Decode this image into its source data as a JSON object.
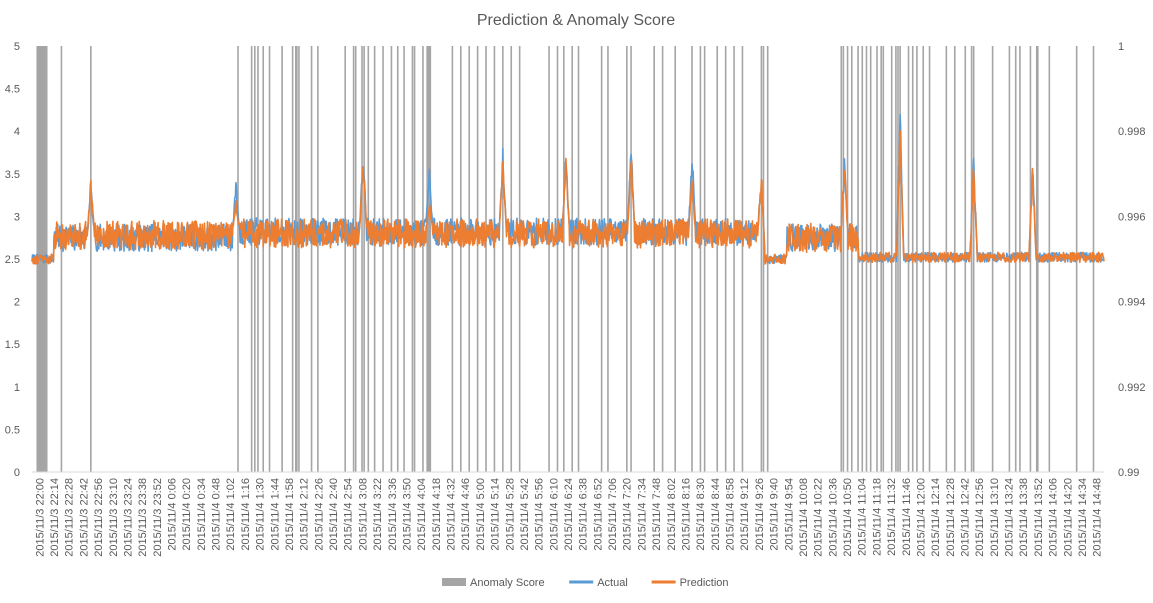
{
  "chart_data": {
    "type": "line",
    "title": "Prediction & Anomaly Score",
    "xlabel": "",
    "ylabel": "",
    "ylim": [
      0,
      5
    ],
    "y2lim": [
      0.99,
      1
    ],
    "yticks": [
      "0",
      "0.5",
      "1",
      "1.5",
      "2",
      "2.5",
      "3",
      "3.5",
      "4",
      "4.5",
      "5"
    ],
    "y2ticks": [
      "0.99",
      "0.992",
      "0.994",
      "0.996",
      "0.998",
      "1"
    ],
    "grid": false,
    "legend_position": "bottom",
    "categories": [
      "2015/11/3 22:00",
      "2015/11/3 22:14",
      "2015/11/3 22:28",
      "2015/11/3 22:42",
      "2015/11/3 22:56",
      "2015/11/3 23:10",
      "2015/11/3 23:24",
      "2015/11/3 23:38",
      "2015/11/3 23:52",
      "2015/11/4 0:06",
      "2015/11/4 0:20",
      "2015/11/4 0:34",
      "2015/11/4 0:48",
      "2015/11/4 1:02",
      "2015/11/4 1:16",
      "2015/11/4 1:30",
      "2015/11/4 1:44",
      "2015/11/4 1:58",
      "2015/11/4 2:12",
      "2015/11/4 2:26",
      "2015/11/4 2:40",
      "2015/11/4 2:54",
      "2015/11/4 3:08",
      "2015/11/4 3:22",
      "2015/11/4 3:36",
      "2015/11/4 3:50",
      "2015/11/4 4:04",
      "2015/11/4 4:18",
      "2015/11/4 4:32",
      "2015/11/4 4:46",
      "2015/11/4 5:00",
      "2015/11/4 5:14",
      "2015/11/4 5:28",
      "2015/11/4 5:42",
      "2015/11/4 5:56",
      "2015/11/4 6:10",
      "2015/11/4 6:24",
      "2015/11/4 6:38",
      "2015/11/4 6:52",
      "2015/11/4 7:06",
      "2015/11/4 7:20",
      "2015/11/4 7:34",
      "2015/11/4 7:48",
      "2015/11/4 8:02",
      "2015/11/4 8:16",
      "2015/11/4 8:30",
      "2015/11/4 8:44",
      "2015/11/4 8:58",
      "2015/11/4 9:12",
      "2015/11/4 9:26",
      "2015/11/4 9:40",
      "2015/11/4 9:54",
      "2015/11/4 10:08",
      "2015/11/4 10:22",
      "2015/11/4 10:36",
      "2015/11/4 10:50",
      "2015/11/4 11:04",
      "2015/11/4 11:18",
      "2015/11/4 11:32",
      "2015/11/4 11:46",
      "2015/11/4 12:00",
      "2015/11/4 12:14",
      "2015/11/4 12:28",
      "2015/11/4 12:42",
      "2015/11/4 12:56",
      "2015/11/4 13:10",
      "2015/11/4 13:24",
      "2015/11/4 13:38",
      "2015/11/4 13:52",
      "2015/11/4 14:06",
      "2015/11/4 14:20",
      "2015/11/4 14:34",
      "2015/11/4 14:48"
    ],
    "series": [
      {
        "name": "Anomaly Score",
        "type": "column",
        "axis": "secondary",
        "color": "#a5a5a5",
        "anomaly_times": [
          "22:05",
          "22:06",
          "22:07",
          "22:08",
          "22:09",
          "22:10",
          "22:11",
          "22:12",
          "22:13",
          "22:14",
          "22:28",
          "22:56",
          "1:16",
          "1:29",
          "1:32",
          "1:35",
          "1:40",
          "1:46",
          "1:58",
          "2:08",
          "2:11",
          "2:12",
          "2:14",
          "2:26",
          "2:32",
          "2:58",
          "3:06",
          "3:08",
          "3:14",
          "3:16",
          "3:20",
          "3:26",
          "3:34",
          "3:42",
          "3:48",
          "3:54",
          "4:02",
          "4:04",
          "4:12",
          "4:16",
          "4:17",
          "4:18",
          "4:19",
          "4:40",
          "4:48",
          "4:56",
          "5:04",
          "5:12",
          "5:20",
          "5:28",
          "5:36",
          "5:44",
          "6:12",
          "6:20",
          "6:26",
          "6:34",
          "6:40",
          "7:02",
          "7:08",
          "7:26",
          "7:30",
          "7:52",
          "8:00",
          "8:12",
          "8:28",
          "8:36",
          "8:40",
          "8:52",
          "9:00",
          "9:08",
          "9:16",
          "9:34",
          "9:36",
          "9:40",
          "10:50",
          "10:52",
          "10:56",
          "11:00",
          "11:06",
          "11:10",
          "11:14",
          "11:18",
          "11:24",
          "11:28",
          "11:30",
          "11:38",
          "11:42",
          "11:44",
          "11:46",
          "11:54",
          "11:58",
          "12:02",
          "12:08",
          "12:14",
          "12:30",
          "12:38",
          "12:48",
          "12:54",
          "12:56",
          "13:14",
          "13:30",
          "13:36",
          "13:40",
          "13:50",
          "13:56",
          "13:57",
          "14:08",
          "14:34",
          "14:50"
        ],
        "value": 1
      },
      {
        "name": "Actual",
        "type": "line",
        "axis": "primary",
        "color": "#5b9bd5",
        "segments": [
          {
            "from": "22:00",
            "to": "22:20",
            "level": 2.5
          },
          {
            "from": "22:21",
            "to": "1:12",
            "level": 2.75
          },
          {
            "from": "1:12",
            "to": "9:33",
            "level": 2.82
          },
          {
            "from": "9:33",
            "to": "9:58",
            "level": 2.5
          },
          {
            "from": "9:58",
            "to": "11:06",
            "level": 2.75
          },
          {
            "from": "11:06",
            "to": "14:59",
            "level": 2.52
          }
        ],
        "spikes": [
          {
            "time": "22:56",
            "value": 3.4
          },
          {
            "time": "1:14",
            "value": 3.45
          },
          {
            "time": "3:15",
            "value": 3.85
          },
          {
            "time": "4:18",
            "value": 3.6
          },
          {
            "time": "5:28",
            "value": 3.8
          },
          {
            "time": "6:28",
            "value": 3.8
          },
          {
            "time": "7:30",
            "value": 3.95
          },
          {
            "time": "8:28",
            "value": 3.85
          },
          {
            "time": "9:34",
            "value": 3.6
          },
          {
            "time": "10:53",
            "value": 3.8
          },
          {
            "time": "11:46",
            "value": 4.4
          },
          {
            "time": "12:56",
            "value": 3.85
          },
          {
            "time": "13:52",
            "value": 3.75
          }
        ]
      },
      {
        "name": "Prediction",
        "type": "line",
        "axis": "primary",
        "color": "#ed7d31",
        "segments": [
          {
            "from": "22:00",
            "to": "22:20",
            "level": 2.5
          },
          {
            "from": "22:21",
            "to": "1:12",
            "level": 2.78
          },
          {
            "from": "1:12",
            "to": "9:33",
            "level": 2.8
          },
          {
            "from": "9:33",
            "to": "9:58",
            "level": 2.5
          },
          {
            "from": "9:58",
            "to": "11:06",
            "level": 2.75
          },
          {
            "from": "11:06",
            "to": "14:59",
            "level": 2.52
          }
        ],
        "spikes": [
          {
            "time": "22:56",
            "value": 3.5
          },
          {
            "time": "1:14",
            "value": 3.2
          },
          {
            "time": "3:15",
            "value": 3.8
          },
          {
            "time": "4:18",
            "value": 3.2
          },
          {
            "time": "5:28",
            "value": 3.8
          },
          {
            "time": "6:28",
            "value": 3.8
          },
          {
            "time": "7:30",
            "value": 3.8
          },
          {
            "time": "8:28",
            "value": 3.5
          },
          {
            "time": "9:34",
            "value": 3.6
          },
          {
            "time": "10:53",
            "value": 3.7
          },
          {
            "time": "11:46",
            "value": 4.05
          },
          {
            "time": "12:56",
            "value": 3.75
          },
          {
            "time": "13:52",
            "value": 3.65
          }
        ]
      }
    ]
  }
}
